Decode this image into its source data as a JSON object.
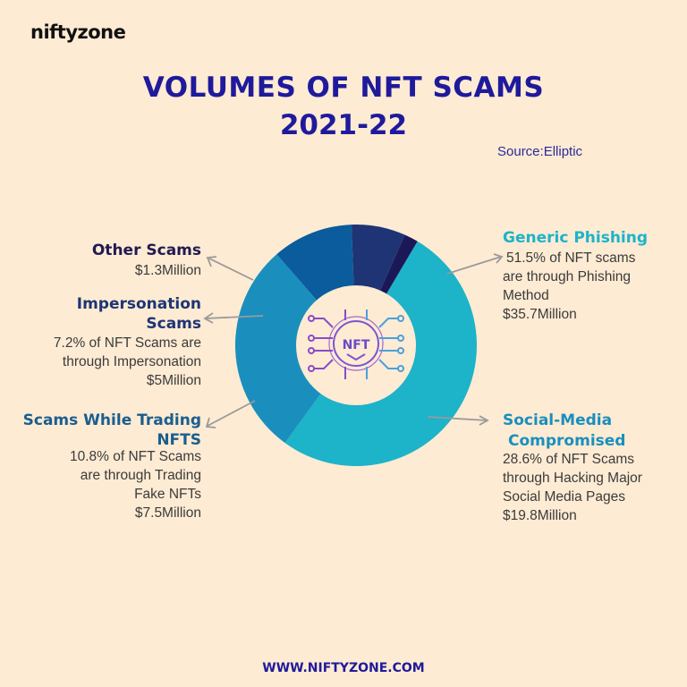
{
  "brand": "niftyzone",
  "title_line1": "VOLUMES OF NFT SCAMS",
  "title_line2": "2021-22",
  "source": "Source:Elliptic",
  "website": "WWW.NIFTYZONE.COM",
  "center_icon_label": "NFT",
  "labels": {
    "generic_title": "Generic Phishing",
    "generic_l1": "51.5% of NFT scams",
    "generic_l2": "are through Phishing",
    "generic_l3": "Method",
    "generic_val": "$35.7Million",
    "social_title1": "Social-Media",
    "social_title2": "Compromised",
    "social_l1": "28.6% of NFT Scams",
    "social_l2": "through Hacking Major",
    "social_l3": "Social Media Pages",
    "social_val": "$19.8Million",
    "trading_title1": "Scams While Trading",
    "trading_title2": "NFTS",
    "trading_l1": "10.8% of NFT Scams",
    "trading_l2": "are through Trading",
    "trading_l3": "Fake NFTs",
    "trading_val": "$7.5Million",
    "imp_title1": "Impersonation",
    "imp_title2": "Scams",
    "imp_l1": "7.2% of NFT Scams are",
    "imp_l2": "through Impersonation",
    "imp_val": "$5Million",
    "other_title": "Other Scams",
    "other_val": "$1.3Million"
  },
  "chart_data": {
    "type": "pie",
    "donut": true,
    "title": "VOLUMES OF NFT SCAMS 2021-22",
    "unit": "$ Million",
    "series": [
      {
        "name": "Generic Phishing",
        "value": 35.7,
        "percent": 51.5,
        "color": "#1db3c9"
      },
      {
        "name": "Social-Media Compromised",
        "value": 19.8,
        "percent": 28.6,
        "color": "#1a8fbd"
      },
      {
        "name": "Scams While Trading NFTS",
        "value": 7.5,
        "percent": 10.8,
        "color": "#0a5c9c"
      },
      {
        "name": "Impersonation Scams",
        "value": 5,
        "percent": 7.2,
        "color": "#1e3475"
      },
      {
        "name": "Other Scams",
        "value": 1.3,
        "percent": 1.9,
        "color": "#1b1858"
      }
    ],
    "colors": {
      "heading_dark": "#211a52",
      "heading_navy": "#1e3475",
      "heading_blue": "#1a5e8f",
      "heading_teal": "#1db3c9",
      "heading_social": "#1a8fbd",
      "arrow": "#9a9a9a",
      "icon": "#8a4bc8"
    }
  }
}
